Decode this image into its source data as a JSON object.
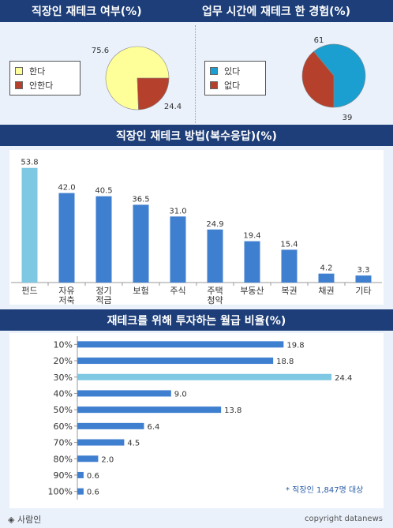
{
  "headers": {
    "left": "직장인 재테크 여부(%)",
    "right": "업무 시간에 재테크 한 경험(%)",
    "methods": "직장인 재테크 방법(복수응답)(%)",
    "salary": "재테크를 위해 투자하는 월급 비율(%)"
  },
  "colors": {
    "band": "#1d3e78",
    "panel": "#eaf1fb",
    "pie_yellow": "#ffff99",
    "pie_red": "#b5402b",
    "pie_blue": "#1a9fd0",
    "bar": "#3f7fd0",
    "bar_highlight": "#7ec8e3"
  },
  "chart_data": [
    {
      "type": "pie",
      "title": "직장인 재테크 여부(%)",
      "labels": [
        "한다",
        "안한다"
      ],
      "values": [
        75.6,
        24.4
      ],
      "colors": [
        "#ffff99",
        "#b5402b"
      ],
      "legend": "left"
    },
    {
      "type": "pie",
      "title": "업무 시간에 재테크 한 경험(%)",
      "labels": [
        "있다",
        "없다"
      ],
      "values": [
        61,
        39
      ],
      "colors": [
        "#1a9fd0",
        "#b5402b"
      ],
      "legend": "left"
    },
    {
      "type": "bar",
      "title": "직장인 재테크 방법(복수응답)(%)",
      "categories": [
        "펀드",
        "자유\n저축",
        "정기\n적금",
        "보험",
        "주식",
        "주택\n청약",
        "부동산",
        "복권",
        "채권",
        "기타"
      ],
      "values": [
        53.8,
        42.0,
        40.5,
        36.5,
        31.0,
        24.9,
        19.4,
        15.4,
        4.2,
        3.3
      ],
      "value_labels": [
        "53.8",
        "42.0",
        "40.5",
        "36.5",
        "31.0",
        "24.9",
        "19.4",
        "15.4",
        "4.2",
        "3.3"
      ],
      "highlight_index": 0,
      "ylim": [
        0,
        60
      ]
    },
    {
      "type": "bar",
      "orientation": "horizontal",
      "title": "재테크를 위해 투자하는 월급 비율(%)",
      "categories": [
        "10%",
        "20%",
        "30%",
        "40%",
        "50%",
        "60%",
        "70%",
        "80%",
        "90%",
        "100%"
      ],
      "values": [
        19.8,
        18.8,
        24.4,
        9.0,
        13.8,
        6.4,
        4.5,
        2.0,
        0.6,
        0.6
      ],
      "value_labels": [
        "19.8",
        "18.8",
        "24.4",
        "9.0",
        "13.8",
        "6.4",
        "4.5",
        "2.0",
        "0.6",
        "0.6"
      ],
      "highlight_index": 2,
      "xlim": [
        0,
        25
      ]
    }
  ],
  "note": "* 직장인 1,847명 대상",
  "footer": {
    "source": "◈ 사람인",
    "copyright": "copyright datanews"
  }
}
